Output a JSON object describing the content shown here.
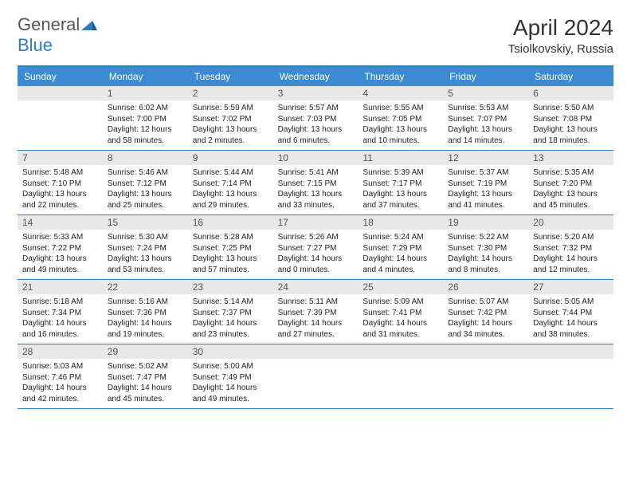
{
  "logo": {
    "part1": "General",
    "part2": "Blue"
  },
  "title": "April 2024",
  "location": "Tsiolkovskiy, Russia",
  "weekdays": [
    "Sunday",
    "Monday",
    "Tuesday",
    "Wednesday",
    "Thursday",
    "Friday",
    "Saturday"
  ],
  "colors": {
    "header_bg": "#3b8bd4",
    "rule": "#2d7dc9",
    "daynum_bg": "#e8e8e8",
    "text": "#222222"
  },
  "layout": {
    "first_weekday_offset": 1,
    "days_in_month": 30
  },
  "days": [
    {
      "n": 1,
      "sunrise": "6:02 AM",
      "sunset": "7:00 PM",
      "daylight": "12 hours and 58 minutes."
    },
    {
      "n": 2,
      "sunrise": "5:59 AM",
      "sunset": "7:02 PM",
      "daylight": "13 hours and 2 minutes."
    },
    {
      "n": 3,
      "sunrise": "5:57 AM",
      "sunset": "7:03 PM",
      "daylight": "13 hours and 6 minutes."
    },
    {
      "n": 4,
      "sunrise": "5:55 AM",
      "sunset": "7:05 PM",
      "daylight": "13 hours and 10 minutes."
    },
    {
      "n": 5,
      "sunrise": "5:53 AM",
      "sunset": "7:07 PM",
      "daylight": "13 hours and 14 minutes."
    },
    {
      "n": 6,
      "sunrise": "5:50 AM",
      "sunset": "7:08 PM",
      "daylight": "13 hours and 18 minutes."
    },
    {
      "n": 7,
      "sunrise": "5:48 AM",
      "sunset": "7:10 PM",
      "daylight": "13 hours and 22 minutes."
    },
    {
      "n": 8,
      "sunrise": "5:46 AM",
      "sunset": "7:12 PM",
      "daylight": "13 hours and 25 minutes."
    },
    {
      "n": 9,
      "sunrise": "5:44 AM",
      "sunset": "7:14 PM",
      "daylight": "13 hours and 29 minutes."
    },
    {
      "n": 10,
      "sunrise": "5:41 AM",
      "sunset": "7:15 PM",
      "daylight": "13 hours and 33 minutes."
    },
    {
      "n": 11,
      "sunrise": "5:39 AM",
      "sunset": "7:17 PM",
      "daylight": "13 hours and 37 minutes."
    },
    {
      "n": 12,
      "sunrise": "5:37 AM",
      "sunset": "7:19 PM",
      "daylight": "13 hours and 41 minutes."
    },
    {
      "n": 13,
      "sunrise": "5:35 AM",
      "sunset": "7:20 PM",
      "daylight": "13 hours and 45 minutes."
    },
    {
      "n": 14,
      "sunrise": "5:33 AM",
      "sunset": "7:22 PM",
      "daylight": "13 hours and 49 minutes."
    },
    {
      "n": 15,
      "sunrise": "5:30 AM",
      "sunset": "7:24 PM",
      "daylight": "13 hours and 53 minutes."
    },
    {
      "n": 16,
      "sunrise": "5:28 AM",
      "sunset": "7:25 PM",
      "daylight": "13 hours and 57 minutes."
    },
    {
      "n": 17,
      "sunrise": "5:26 AM",
      "sunset": "7:27 PM",
      "daylight": "14 hours and 0 minutes."
    },
    {
      "n": 18,
      "sunrise": "5:24 AM",
      "sunset": "7:29 PM",
      "daylight": "14 hours and 4 minutes."
    },
    {
      "n": 19,
      "sunrise": "5:22 AM",
      "sunset": "7:30 PM",
      "daylight": "14 hours and 8 minutes."
    },
    {
      "n": 20,
      "sunrise": "5:20 AM",
      "sunset": "7:32 PM",
      "daylight": "14 hours and 12 minutes."
    },
    {
      "n": 21,
      "sunrise": "5:18 AM",
      "sunset": "7:34 PM",
      "daylight": "14 hours and 16 minutes."
    },
    {
      "n": 22,
      "sunrise": "5:16 AM",
      "sunset": "7:36 PM",
      "daylight": "14 hours and 19 minutes."
    },
    {
      "n": 23,
      "sunrise": "5:14 AM",
      "sunset": "7:37 PM",
      "daylight": "14 hours and 23 minutes."
    },
    {
      "n": 24,
      "sunrise": "5:11 AM",
      "sunset": "7:39 PM",
      "daylight": "14 hours and 27 minutes."
    },
    {
      "n": 25,
      "sunrise": "5:09 AM",
      "sunset": "7:41 PM",
      "daylight": "14 hours and 31 minutes."
    },
    {
      "n": 26,
      "sunrise": "5:07 AM",
      "sunset": "7:42 PM",
      "daylight": "14 hours and 34 minutes."
    },
    {
      "n": 27,
      "sunrise": "5:05 AM",
      "sunset": "7:44 PM",
      "daylight": "14 hours and 38 minutes."
    },
    {
      "n": 28,
      "sunrise": "5:03 AM",
      "sunset": "7:46 PM",
      "daylight": "14 hours and 42 minutes."
    },
    {
      "n": 29,
      "sunrise": "5:02 AM",
      "sunset": "7:47 PM",
      "daylight": "14 hours and 45 minutes."
    },
    {
      "n": 30,
      "sunrise": "5:00 AM",
      "sunset": "7:49 PM",
      "daylight": "14 hours and 49 minutes."
    }
  ],
  "labels": {
    "sunrise": "Sunrise:",
    "sunset": "Sunset:",
    "daylight": "Daylight:"
  }
}
